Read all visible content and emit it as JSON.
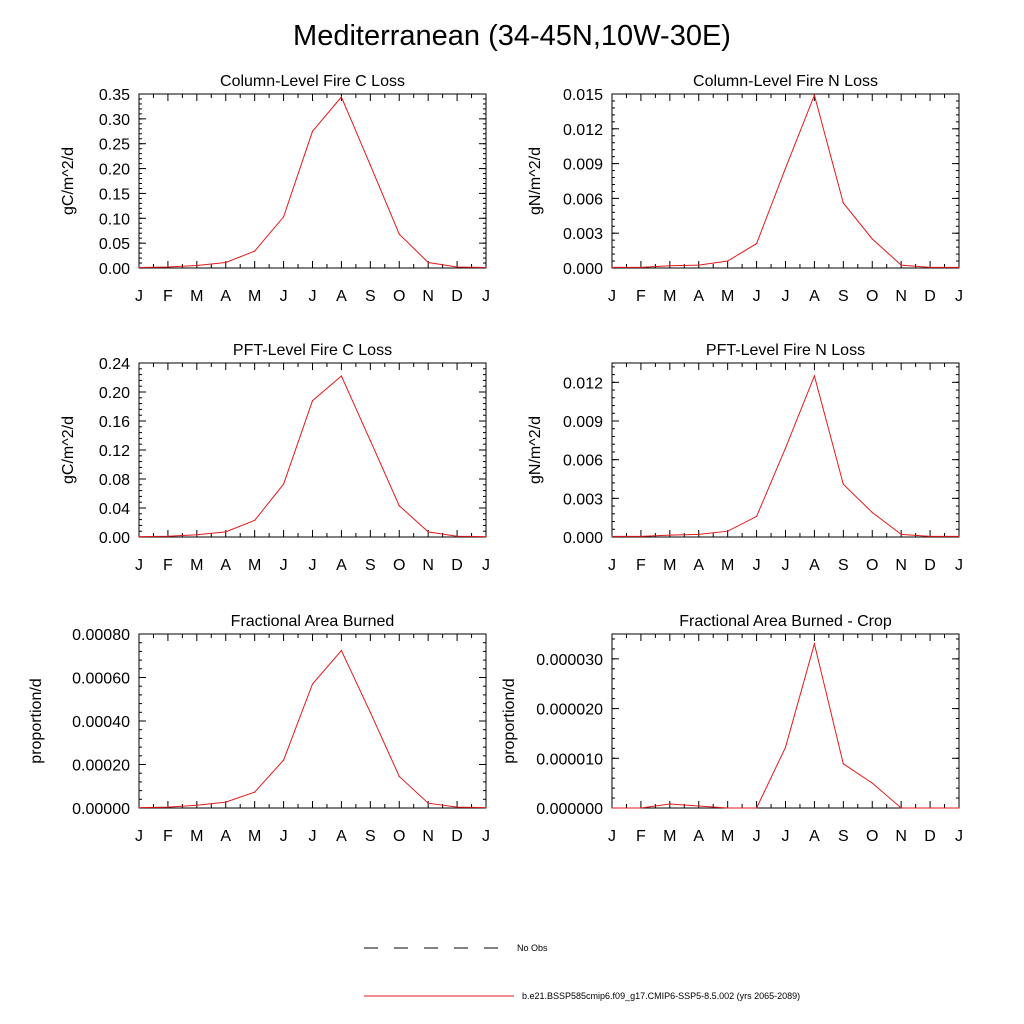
{
  "figure": {
    "title": "Mediterranean (34-45N,10W-30E)",
    "legend": [
      {
        "label": "No Obs",
        "style": "dashed",
        "color": "#000000"
      },
      {
        "label": "b.e21.BSSP585cmip6.f09_g17.CMIP6-SSP5-8.5.002 (yrs 2065-2089)",
        "style": "solid",
        "color": "#e41a1c"
      }
    ]
  },
  "chart_data": [
    {
      "type": "line",
      "title": "Column-Level Fire C Loss",
      "ylabel": "gC/m^2/d",
      "xlabel": "",
      "categories": [
        "J",
        "F",
        "M",
        "A",
        "M",
        "J",
        "J",
        "A",
        "S",
        "O",
        "N",
        "D",
        "J"
      ],
      "ylim": [
        0,
        0.35
      ],
      "yticks": [
        "0.00",
        "0.05",
        "0.10",
        "0.15",
        "0.20",
        "0.25",
        "0.30",
        "0.35"
      ],
      "grid": false,
      "series": [
        {
          "color": "#e41a1c",
          "values": [
            0.001,
            0.002,
            0.005,
            0.011,
            0.034,
            0.103,
            0.275,
            0.344,
            0.207,
            0.068,
            0.011,
            0.002,
            0.001
          ]
        }
      ]
    },
    {
      "type": "line",
      "title": "Column-Level Fire N Loss",
      "ylabel": "gN/m^2/d",
      "xlabel": "",
      "categories": [
        "J",
        "F",
        "M",
        "A",
        "M",
        "J",
        "J",
        "A",
        "S",
        "O",
        "N",
        "D",
        "J"
      ],
      "ylim": [
        0,
        0.015
      ],
      "yticks": [
        "0.000",
        "0.003",
        "0.006",
        "0.009",
        "0.012",
        "0.015"
      ],
      "grid": false,
      "series": [
        {
          "color": "#e41a1c",
          "values": [
            5e-05,
            5e-05,
            0.0002,
            0.00025,
            0.0006,
            0.0021,
            0.0086,
            0.0149,
            0.0056,
            0.0025,
            0.00025,
            5e-05,
            5e-05
          ]
        }
      ]
    },
    {
      "type": "line",
      "title": "PFT-Level Fire C Loss",
      "ylabel": "gC/m^2/d",
      "xlabel": "",
      "categories": [
        "J",
        "F",
        "M",
        "A",
        "M",
        "J",
        "J",
        "A",
        "S",
        "O",
        "N",
        "D",
        "J"
      ],
      "ylim": [
        0,
        0.24
      ],
      "yticks": [
        "0.00",
        "0.04",
        "0.08",
        "0.12",
        "0.16",
        "0.20",
        "0.24"
      ],
      "grid": false,
      "series": [
        {
          "color": "#e41a1c",
          "values": [
            0.0005,
            0.001,
            0.003,
            0.007,
            0.023,
            0.073,
            0.188,
            0.222,
            0.133,
            0.043,
            0.007,
            0.001,
            0.0005
          ]
        }
      ]
    },
    {
      "type": "line",
      "title": "PFT-Level Fire N Loss",
      "ylabel": "gN/m^2/d",
      "xlabel": "",
      "categories": [
        "J",
        "F",
        "M",
        "A",
        "M",
        "J",
        "J",
        "A",
        "S",
        "O",
        "N",
        "D",
        "J"
      ],
      "ylim": [
        0,
        0.0135
      ],
      "yticks": [
        "0.000",
        "0.003",
        "0.006",
        "0.009",
        "0.012"
      ],
      "grid": false,
      "series": [
        {
          "color": "#e41a1c",
          "values": [
            5e-05,
            5e-05,
            0.00015,
            0.0002,
            0.00045,
            0.0016,
            0.0069,
            0.0125,
            0.0041,
            0.0019,
            0.0002,
            5e-05,
            5e-05
          ]
        }
      ]
    },
    {
      "type": "line",
      "title": "Fractional Area Burned",
      "ylabel": "proportion/d",
      "xlabel": "",
      "categories": [
        "J",
        "F",
        "M",
        "A",
        "M",
        "J",
        "J",
        "A",
        "S",
        "O",
        "N",
        "D",
        "J"
      ],
      "ylim": [
        0,
        0.0008
      ],
      "yticks": [
        "0.00000",
        "0.00020",
        "0.00040",
        "0.00060",
        "0.00080"
      ],
      "grid": false,
      "series": [
        {
          "color": "#e41a1c",
          "values": [
            2e-06,
            4e-06,
            1.3e-05,
            2.7e-05,
            7.3e-05,
            0.00022,
            0.00057,
            0.000724,
            0.00044,
            0.000145,
            2.2e-05,
            4e-06,
            2e-06
          ]
        }
      ]
    },
    {
      "type": "line",
      "title": "Fractional Area Burned - Crop",
      "ylabel": "proportion/d",
      "xlabel": "",
      "categories": [
        "J",
        "F",
        "M",
        "A",
        "M",
        "J",
        "J",
        "A",
        "S",
        "O",
        "N",
        "D",
        "J"
      ],
      "ylim": [
        0,
        3.5e-05
      ],
      "yticks": [
        "0.000000",
        "0.000010",
        "0.000020",
        "0.000030"
      ],
      "grid": false,
      "series": [
        {
          "color": "#e41a1c",
          "values": [
            0.0,
            0.0,
            8e-07,
            4e-07,
            0.0,
            0.0,
            1.22e-05,
            3.3e-05,
            8.9e-06,
            5e-06,
            0.0,
            0.0,
            0.0
          ]
        }
      ]
    }
  ]
}
